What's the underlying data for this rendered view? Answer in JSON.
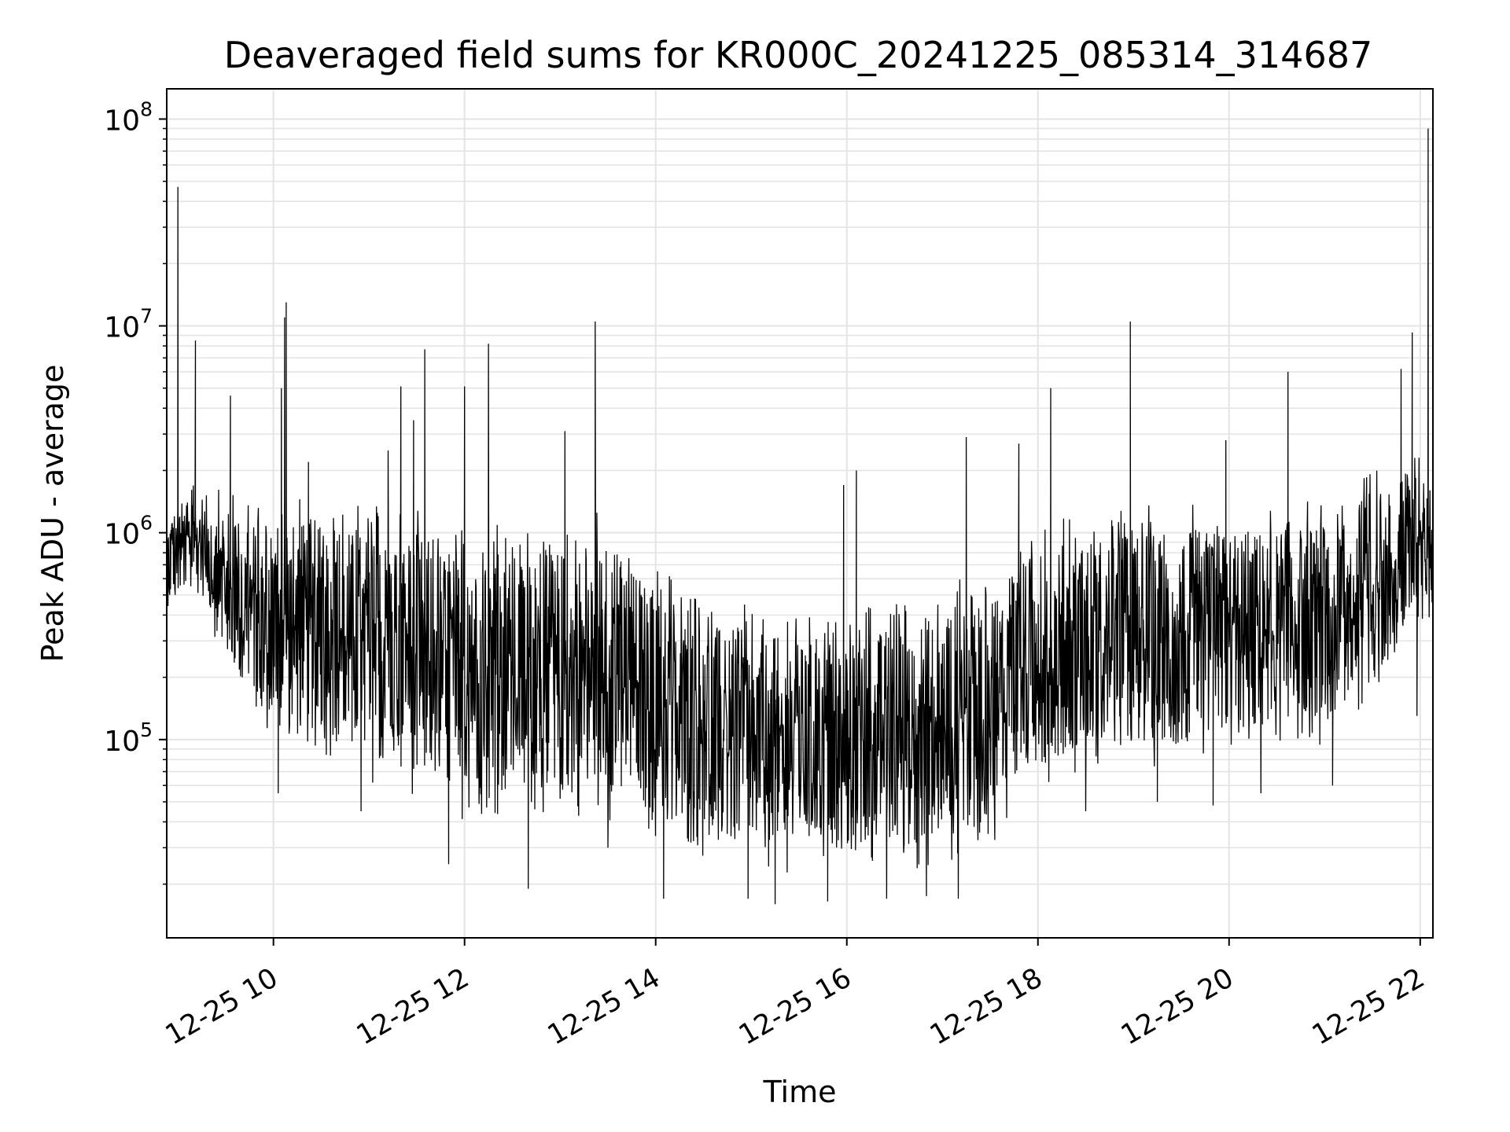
{
  "chart_data": {
    "type": "line",
    "title": "Deaveraged field sums for KR000C_20241225_085314_314687",
    "xlabel": "Time",
    "ylabel": "Peak ADU - average",
    "x_range": [
      "2024-12-25 08:53",
      "2024-12-25 22:08"
    ],
    "y_scale": "log",
    "y_range": [
      11000,
      140000000
    ],
    "grid": true,
    "line_color": "#000000",
    "x_ticks": [
      {
        "value": "2024-12-25 10:00",
        "label": "12-25 10"
      },
      {
        "value": "2024-12-25 12:00",
        "label": "12-25 12"
      },
      {
        "value": "2024-12-25 14:00",
        "label": "12-25 14"
      },
      {
        "value": "2024-12-25 16:00",
        "label": "12-25 16"
      },
      {
        "value": "2024-12-25 18:00",
        "label": "12-25 18"
      },
      {
        "value": "2024-12-25 20:00",
        "label": "12-25 20"
      },
      {
        "value": "2024-12-25 22:00",
        "label": "12-25 22"
      }
    ],
    "y_ticks": [
      {
        "value": 100000,
        "base": "10",
        "exp": "5"
      },
      {
        "value": 1000000,
        "base": "10",
        "exp": "6"
      },
      {
        "value": 10000000,
        "base": "10",
        "exp": "7"
      },
      {
        "value": 100000000,
        "base": "10",
        "exp": "8"
      }
    ],
    "series": [
      {
        "envelope": [
          {
            "time": "2024-12-25 08:53",
            "low": 380000,
            "high": 1500000
          },
          {
            "time": "2024-12-25 09:15",
            "low": 500000,
            "high": 1800000
          },
          {
            "time": "2024-12-25 09:30",
            "low": 200000,
            "high": 1600000
          },
          {
            "time": "2024-12-25 10:00",
            "low": 90000,
            "high": 1500000
          },
          {
            "time": "2024-12-25 10:30",
            "low": 80000,
            "high": 1500000
          },
          {
            "time": "2024-12-25 11:00",
            "low": 60000,
            "high": 1400000
          },
          {
            "time": "2024-12-25 11:30",
            "low": 50000,
            "high": 1400000
          },
          {
            "time": "2024-12-25 12:00",
            "low": 40000,
            "high": 1100000
          },
          {
            "time": "2024-12-25 12:30",
            "low": 40000,
            "high": 1100000
          },
          {
            "time": "2024-12-25 13:00",
            "low": 40000,
            "high": 1200000
          },
          {
            "time": "2024-12-25 13:30",
            "low": 40000,
            "high": 1300000
          },
          {
            "time": "2024-12-25 14:00",
            "low": 30000,
            "high": 700000
          },
          {
            "time": "2024-12-25 14:30",
            "low": 25000,
            "high": 500000
          },
          {
            "time": "2024-12-25 15:00",
            "low": 22000,
            "high": 450000
          },
          {
            "time": "2024-12-25 15:30",
            "low": 22000,
            "high": 400000
          },
          {
            "time": "2024-12-25 16:00",
            "low": 22000,
            "high": 400000
          },
          {
            "time": "2024-12-25 16:30",
            "low": 22000,
            "high": 500000
          },
          {
            "time": "2024-12-25 17:00",
            "low": 22000,
            "high": 600000
          },
          {
            "time": "2024-12-25 17:30",
            "low": 30000,
            "high": 800000
          },
          {
            "time": "2024-12-25 18:00",
            "low": 60000,
            "high": 1100000
          },
          {
            "time": "2024-12-25 18:30",
            "low": 70000,
            "high": 1300000
          },
          {
            "time": "2024-12-25 19:00",
            "low": 70000,
            "high": 1400000
          },
          {
            "time": "2024-12-25 19:30",
            "low": 70000,
            "high": 1400000
          },
          {
            "time": "2024-12-25 20:00",
            "low": 80000,
            "high": 1400000
          },
          {
            "time": "2024-12-25 20:30",
            "low": 90000,
            "high": 1400000
          },
          {
            "time": "2024-12-25 21:00",
            "low": 90000,
            "high": 1500000
          },
          {
            "time": "2024-12-25 21:30",
            "low": 150000,
            "high": 2000000
          },
          {
            "time": "2024-12-25 22:00",
            "low": 300000,
            "high": 2500000
          },
          {
            "time": "2024-12-25 22:08",
            "low": 300000,
            "high": 1500000
          }
        ],
        "spikes": [
          {
            "time": "2024-12-25 09:00",
            "value": 47000000
          },
          {
            "time": "2024-12-25 09:11",
            "value": 8500000
          },
          {
            "time": "2024-12-25 09:33",
            "value": 4600000
          },
          {
            "time": "2024-12-25 10:05",
            "value": 5000000
          },
          {
            "time": "2024-12-25 10:07",
            "value": 11000000
          },
          {
            "time": "2024-12-25 10:08",
            "value": 13000000
          },
          {
            "time": "2024-12-25 10:22",
            "value": 2200000
          },
          {
            "time": "2024-12-25 11:12",
            "value": 2500000
          },
          {
            "time": "2024-12-25 11:20",
            "value": 5100000
          },
          {
            "time": "2024-12-25 11:28",
            "value": 3500000
          },
          {
            "time": "2024-12-25 11:35",
            "value": 7700000
          },
          {
            "time": "2024-12-25 12:00",
            "value": 5100000
          },
          {
            "time": "2024-12-25 12:15",
            "value": 8200000
          },
          {
            "time": "2024-12-25 13:03",
            "value": 3100000
          },
          {
            "time": "2024-12-25 13:22",
            "value": 10500000
          },
          {
            "time": "2024-12-25 15:58",
            "value": 1700000
          },
          {
            "time": "2024-12-25 16:06",
            "value": 2000000
          },
          {
            "time": "2024-12-25 17:15",
            "value": 2900000
          },
          {
            "time": "2024-12-25 17:48",
            "value": 2700000
          },
          {
            "time": "2024-12-25 18:08",
            "value": 5000000
          },
          {
            "time": "2024-12-25 18:58",
            "value": 10500000
          },
          {
            "time": "2024-12-25 19:58",
            "value": 2800000
          },
          {
            "time": "2024-12-25 20:37",
            "value": 6000000
          },
          {
            "time": "2024-12-25 21:48",
            "value": 6200000
          },
          {
            "time": "2024-12-25 21:55",
            "value": 9300000
          },
          {
            "time": "2024-12-25 22:05",
            "value": 90000000
          }
        ],
        "dips": [
          {
            "time": "2024-12-25 10:03",
            "value": 55000
          },
          {
            "time": "2024-12-25 10:55",
            "value": 45000
          },
          {
            "time": "2024-12-25 11:50",
            "value": 25000
          },
          {
            "time": "2024-12-25 12:40",
            "value": 19000
          },
          {
            "time": "2024-12-25 13:30",
            "value": 30000
          },
          {
            "time": "2024-12-25 14:05",
            "value": 17000
          },
          {
            "time": "2024-12-25 14:58",
            "value": 17000
          },
          {
            "time": "2024-12-25 15:15",
            "value": 16000
          },
          {
            "time": "2024-12-25 15:48",
            "value": 16500
          },
          {
            "time": "2024-12-25 16:25",
            "value": 17000
          },
          {
            "time": "2024-12-25 16:50",
            "value": 17500
          },
          {
            "time": "2024-12-25 17:10",
            "value": 17000
          },
          {
            "time": "2024-12-25 18:30",
            "value": 45000
          },
          {
            "time": "2024-12-25 19:15",
            "value": 50000
          },
          {
            "time": "2024-12-25 19:50",
            "value": 48000
          },
          {
            "time": "2024-12-25 20:20",
            "value": 55000
          },
          {
            "time": "2024-12-25 21:05",
            "value": 60000
          },
          {
            "time": "2024-12-25 21:58",
            "value": 130000
          }
        ]
      }
    ]
  }
}
